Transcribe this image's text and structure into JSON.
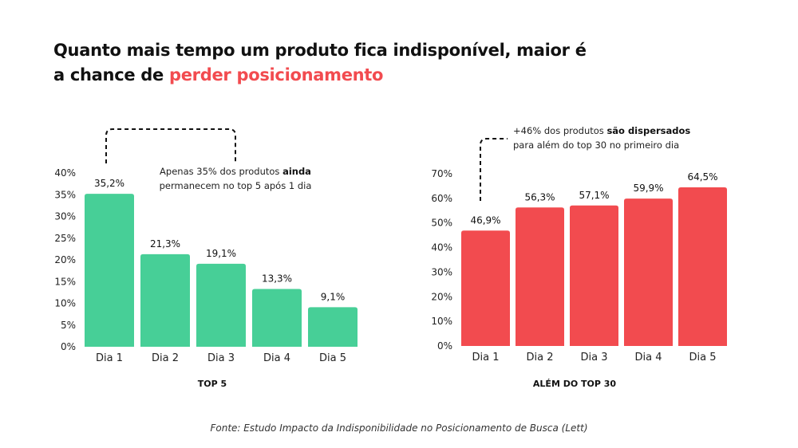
{
  "headline": {
    "line1": "Quanto mais tempo um produto fica indisponível, maior é",
    "line2_prefix": "a chance de ",
    "line2_highlight": "perder posicionamento"
  },
  "colors": {
    "green": "#47cf97",
    "red": "#f24b4f",
    "accent": "#f24b4f"
  },
  "chart_data": [
    {
      "type": "bar",
      "title": "TOP 5",
      "categories": [
        "Dia 1",
        "Dia 2",
        "Dia 3",
        "Dia 4",
        "Dia 5"
      ],
      "values": [
        35.2,
        21.3,
        19.1,
        13.3,
        9.1
      ],
      "value_labels": [
        "35,2%",
        "21,3%",
        "19,1%",
        "13,3%",
        "9,1%"
      ],
      "y_ticks": [
        "0%",
        "5%",
        "10%",
        "15%",
        "20%",
        "25%",
        "30%",
        "35%",
        "40%"
      ],
      "ylim": [
        0,
        40
      ],
      "color": "#47cf97",
      "annotation": {
        "normal1": "Apenas 35% dos produtos ",
        "bold1": "ainda",
        "bold2": "permanecem no top 5 após 1 dia"
      }
    },
    {
      "type": "bar",
      "title": "ALÉM DO TOP 30",
      "categories": [
        "Dia 1",
        "Dia 2",
        "Dia 3",
        "Dia 4",
        "Dia 5"
      ],
      "values": [
        46.9,
        56.3,
        57.1,
        59.9,
        64.5
      ],
      "value_labels": [
        "46,9%",
        "56,3%",
        "57,1%",
        "59,9%",
        "64,5%"
      ],
      "y_ticks": [
        "0%",
        "10%",
        "20%",
        "30%",
        "40%",
        "50%",
        "60%",
        "70%"
      ],
      "ylim": [
        0,
        70
      ],
      "color": "#f24b4f",
      "annotation": {
        "normal1": "+46% dos produtos ",
        "bold1": "são dispersados",
        "bold2": "para além do top 30 no primeiro dia"
      }
    }
  ],
  "source": "Fonte: Estudo Impacto da Indisponibilidade no Posicionamento de Busca (Lett)"
}
